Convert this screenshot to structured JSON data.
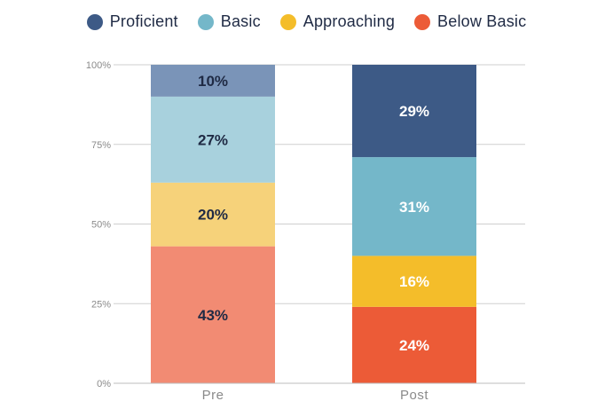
{
  "chart_data": {
    "type": "bar",
    "stacked": true,
    "categories": [
      "Pre",
      "Post"
    ],
    "series": [
      {
        "name": "Below Basic",
        "values": [
          43,
          24
        ],
        "labels": [
          "43%",
          "24%"
        ],
        "color": "#f28b73",
        "post_color": "#ec5b37"
      },
      {
        "name": "Approaching",
        "values": [
          20,
          16
        ],
        "labels": [
          "20%",
          "16%"
        ],
        "color": "#f6d27a",
        "post_color": "#f4bd2a"
      },
      {
        "name": "Basic",
        "values": [
          27,
          31
        ],
        "labels": [
          "27%",
          "31%"
        ],
        "color": "#a8d1dd",
        "post_color": "#74b7c9"
      },
      {
        "name": "Proficient",
        "values": [
          10,
          29
        ],
        "labels": [
          "10%",
          "29%"
        ],
        "color": "#7a94b8",
        "post_color": "#3d5a86"
      }
    ],
    "legend": {
      "placement": "top",
      "entries": [
        {
          "name": "Proficient",
          "color": "#3d5a86"
        },
        {
          "name": "Basic",
          "color": "#74b7c9"
        },
        {
          "name": "Approaching",
          "color": "#f4bd2a"
        },
        {
          "name": "Below Basic",
          "color": "#ec5b37"
        }
      ]
    },
    "yticks": [
      "0%",
      "25%",
      "50%",
      "75%",
      "100%"
    ],
    "ytick_values": [
      0,
      25,
      50,
      75,
      100
    ],
    "ylim": [
      0,
      100
    ],
    "grid": true,
    "label_colors": {
      "pre": "#1f2a44",
      "post": "#ffffff"
    }
  }
}
